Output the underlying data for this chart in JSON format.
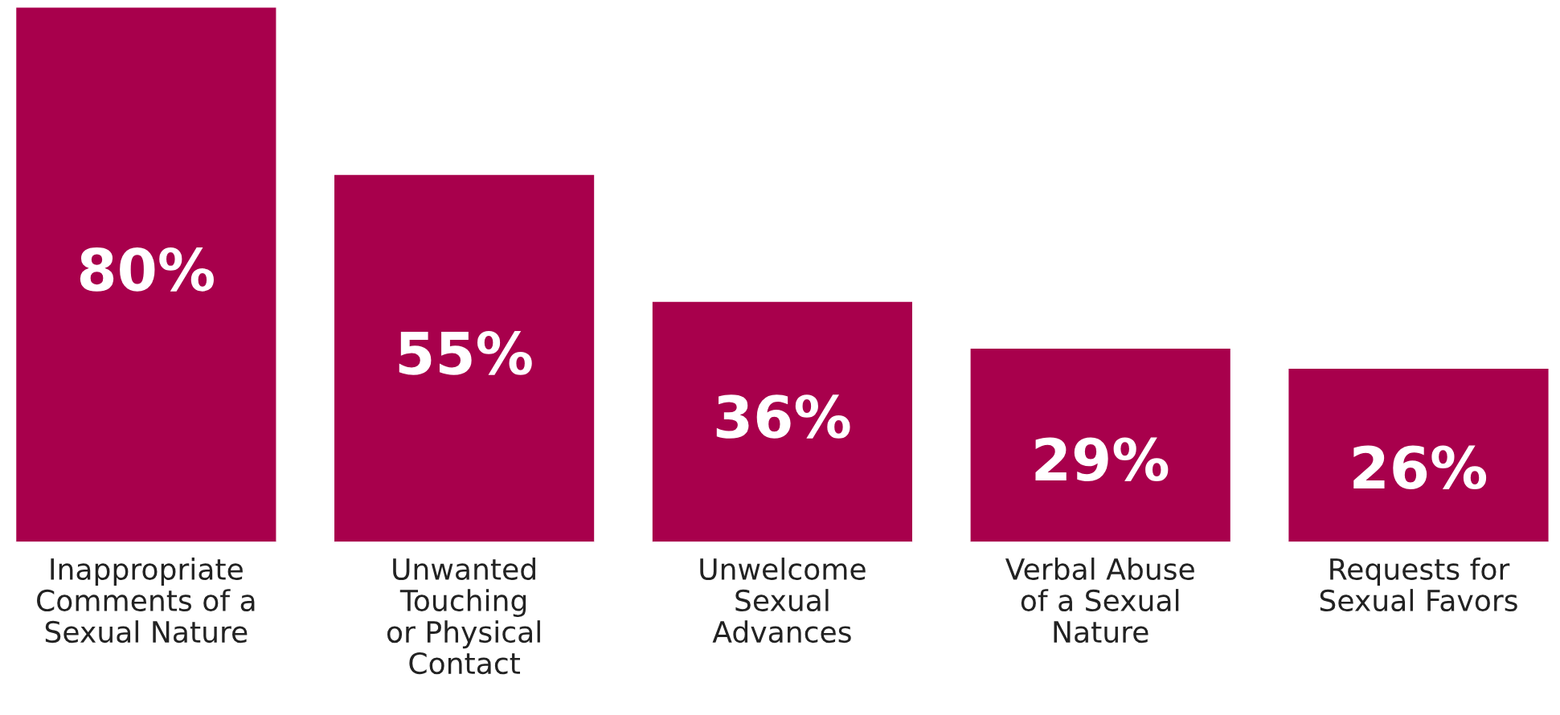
{
  "chart_data": {
    "type": "bar",
    "categories": [
      "Inappropriate\nComments of a\nSexual Nature",
      "Unwanted\nTouching\nor Physical\nContact",
      "Unwelcome\nSexual\nAdvances",
      "Verbal Abuse\nof a Sexual\nNature",
      "Requests for\nSexual Favors"
    ],
    "values": [
      80,
      55,
      36,
      29,
      26
    ],
    "value_labels": [
      "80%",
      "55%",
      "36%",
      "29%",
      "26%"
    ],
    "color": "#a8004c",
    "grid": false,
    "legend": false
  }
}
